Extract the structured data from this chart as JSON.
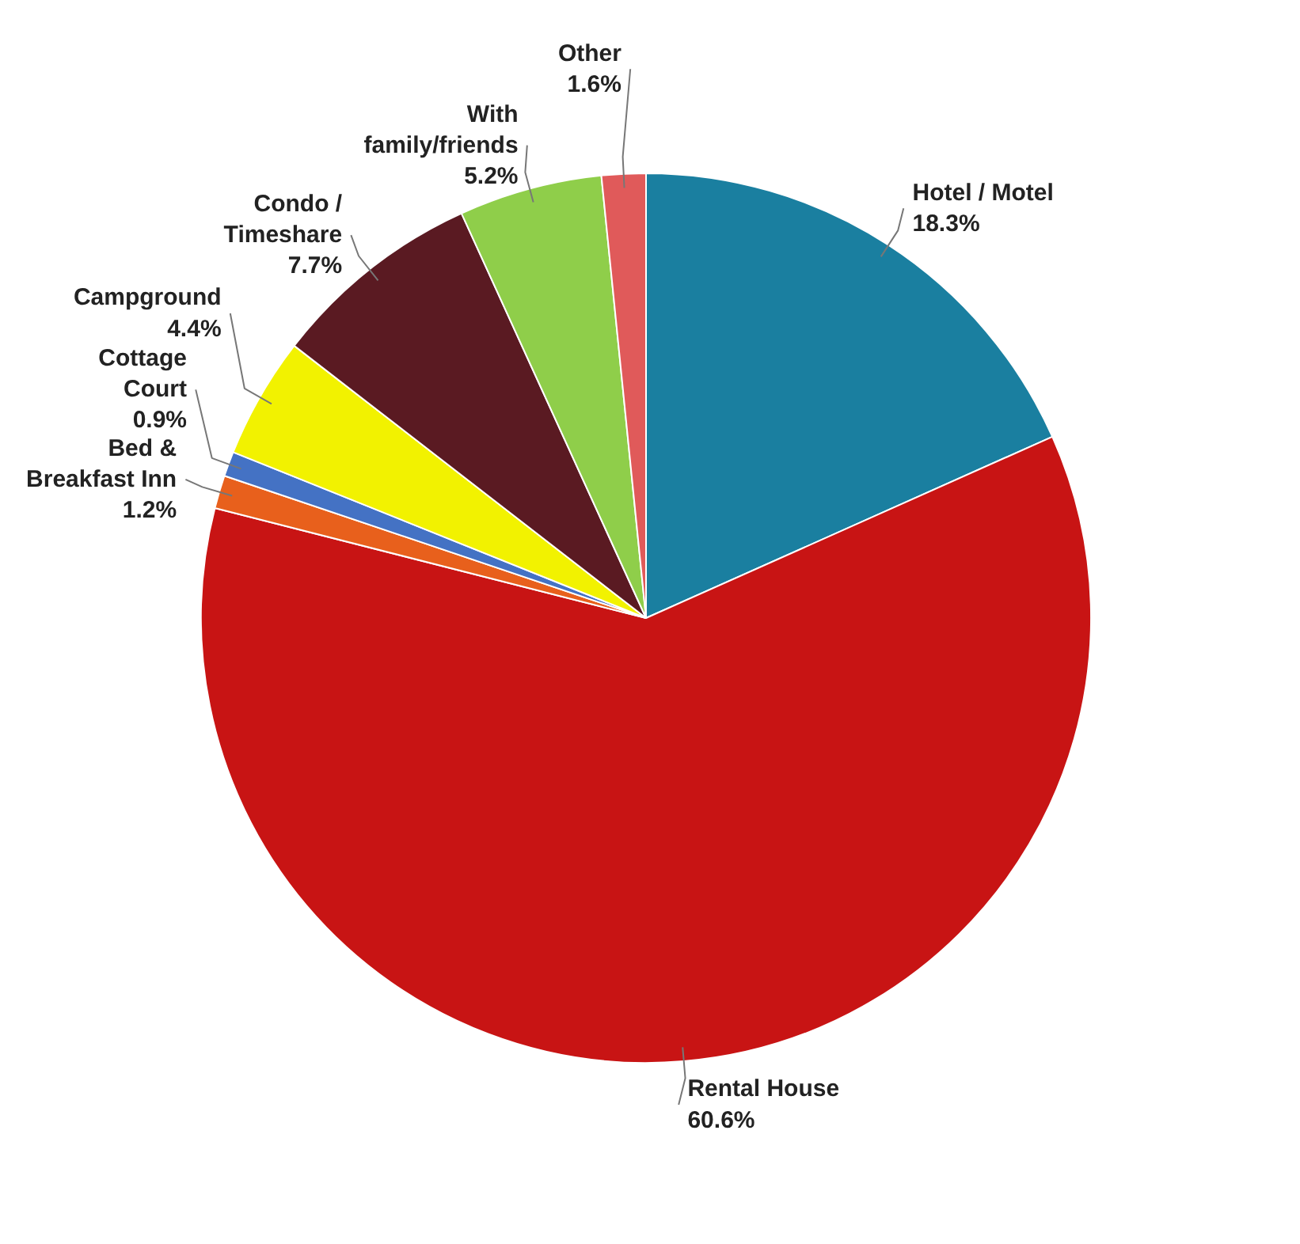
{
  "chart_data": {
    "type": "pie",
    "categories": [
      "Hotel / Motel",
      "Rental House",
      "Bed &\nBreakfast Inn",
      "Cottage\nCourt",
      "Campground",
      "Condo /\nTimeshare",
      "With\nfamily/friends",
      "Other"
    ],
    "values": [
      18.3,
      60.6,
      1.2,
      0.9,
      4.4,
      7.7,
      5.2,
      1.6
    ],
    "value_labels": [
      "18.3%",
      "60.6%",
      "1.2%",
      "0.9%",
      "4.4%",
      "7.7%",
      "5.2%",
      "1.6%"
    ],
    "colors": [
      "#1a7fa0",
      "#c81414",
      "#e8601c",
      "#4472c4",
      "#f2f200",
      "#5a1a22",
      "#8fce4a",
      "#e05a5a"
    ]
  }
}
